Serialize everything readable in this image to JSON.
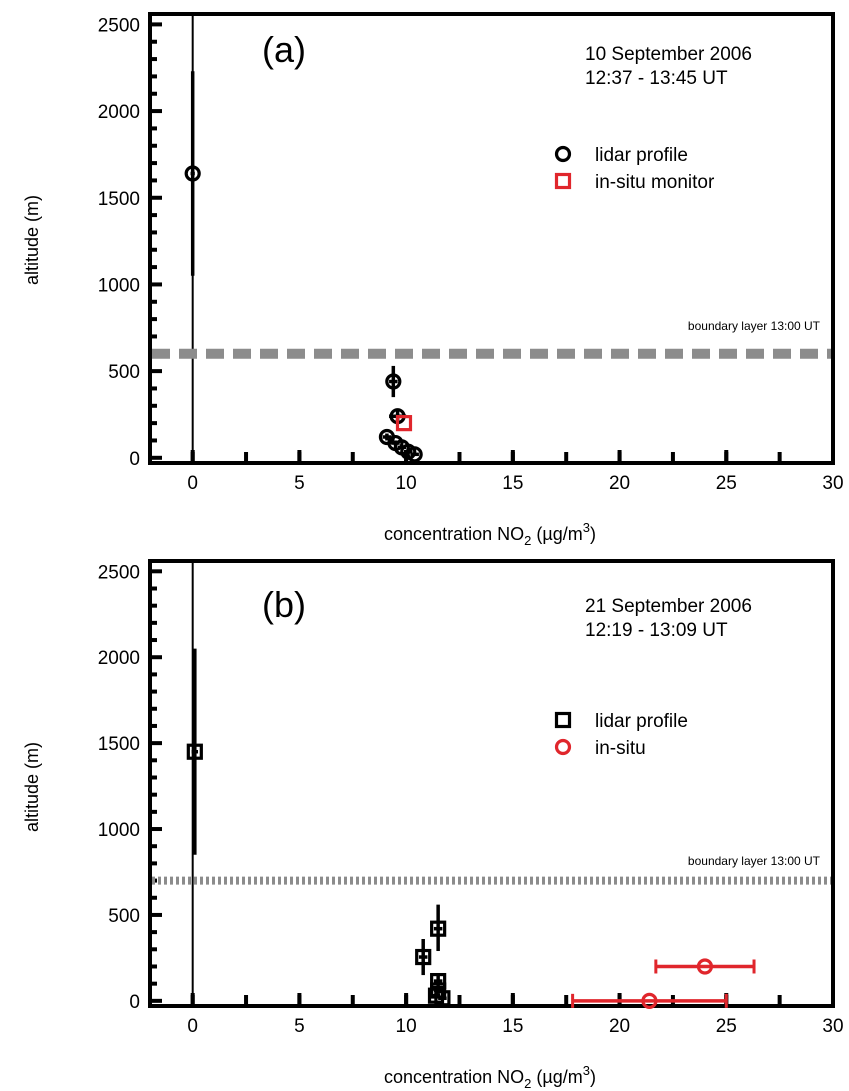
{
  "chart_data": [
    {
      "type": "scatter",
      "panel_label": "(a)",
      "date": "10 September 2006",
      "time": "12:37 - 13:45 UT",
      "xlabel": "concentration NO",
      "xlabel_sub": "2",
      "xlabel_unit_pre": " (µg/m",
      "xlabel_unit_sup": "3",
      "xlabel_unit_post": ")",
      "ylabel": "altitude (m)",
      "xlim": [
        -2,
        30
      ],
      "ylim": [
        -30,
        2560
      ],
      "xticks": [
        "0",
        "5",
        "10",
        "15",
        "20",
        "25",
        "30"
      ],
      "yticks": [
        "0",
        "500",
        "1000",
        "1500",
        "2000",
        "2500"
      ],
      "boundary_layer": {
        "label": "boundary layer 13:00 UT",
        "altitude": 600,
        "style": "dashed"
      },
      "series": [
        {
          "name": "lidar profile",
          "marker": "circle",
          "color": "#000000",
          "points": [
            {
              "x": 0.0,
              "y": 1640,
              "ylo": 1050,
              "yhi": 2230,
              "xlo": -0.1,
              "xhi": 0.1
            },
            {
              "x": 9.4,
              "y": 440,
              "ylo": 350,
              "yhi": 530,
              "xlo": 9.2,
              "xhi": 9.6
            },
            {
              "x": 9.6,
              "y": 240,
              "ylo": 205,
              "yhi": 275,
              "xlo": 9.2,
              "xhi": 10.0
            },
            {
              "x": 9.1,
              "y": 120,
              "ylo": 100,
              "yhi": 140,
              "xlo": 8.9,
              "xhi": 9.3
            },
            {
              "x": 9.5,
              "y": 85,
              "ylo": 70,
              "yhi": 100,
              "xlo": 9.3,
              "xhi": 9.7
            },
            {
              "x": 9.8,
              "y": 60,
              "ylo": 48,
              "yhi": 72,
              "xlo": 9.6,
              "xhi": 10.0
            },
            {
              "x": 10.1,
              "y": 35,
              "ylo": 25,
              "yhi": 45,
              "xlo": 9.9,
              "xhi": 10.3
            },
            {
              "x": 10.4,
              "y": 20,
              "ylo": 12,
              "yhi": 28,
              "xlo": 10.2,
              "xhi": 10.6
            }
          ]
        },
        {
          "name": "in-situ monitor",
          "marker": "square",
          "color": "#e0262c",
          "points": [
            {
              "x": 9.9,
              "y": 200
            }
          ]
        }
      ]
    },
    {
      "type": "scatter",
      "panel_label": "(b)",
      "date": "21 September 2006",
      "time": "12:19 - 13:09 UT",
      "xlabel": "concentration NO",
      "xlabel_sub": "2",
      "xlabel_unit_pre": " (µg/m",
      "xlabel_unit_sup": "3",
      "xlabel_unit_post": ")",
      "ylabel": "altitude (m)",
      "xlim": [
        -2,
        30
      ],
      "ylim": [
        -30,
        2560
      ],
      "xticks": [
        "0",
        "5",
        "10",
        "15",
        "20",
        "25",
        "30"
      ],
      "yticks": [
        "0",
        "500",
        "1000",
        "1500",
        "2000",
        "2500"
      ],
      "boundary_layer": {
        "label": "boundary layer 13:00 UT",
        "altitude": 700,
        "style": "dotted"
      },
      "series": [
        {
          "name": "lidar profile",
          "marker": "square",
          "color": "#000000",
          "points": [
            {
              "x": 0.1,
              "y": 1450,
              "ylo": 850,
              "yhi": 2050,
              "xlo": -0.05,
              "xhi": 0.25
            },
            {
              "x": 11.5,
              "y": 420,
              "ylo": 290,
              "yhi": 560,
              "xlo": 11.3,
              "xhi": 11.7
            },
            {
              "x": 10.8,
              "y": 255,
              "ylo": 150,
              "yhi": 360,
              "xlo": 10.6,
              "xhi": 11.0
            },
            {
              "x": 11.5,
              "y": 115,
              "ylo": 80,
              "yhi": 150,
              "xlo": 11.3,
              "xhi": 11.7
            },
            {
              "x": 11.5,
              "y": 60,
              "ylo": 40,
              "yhi": 80,
              "xlo": 11.3,
              "xhi": 11.7
            },
            {
              "x": 11.4,
              "y": 30,
              "ylo": 15,
              "yhi": 45,
              "xlo": 11.2,
              "xhi": 11.6
            },
            {
              "x": 11.7,
              "y": 15,
              "ylo": 5,
              "yhi": 25,
              "xlo": 11.5,
              "xhi": 11.9
            }
          ]
        },
        {
          "name": "in-situ",
          "marker": "circle",
          "color": "#e0262c",
          "points": [
            {
              "x": 24.0,
              "y": 200,
              "xlo": 21.7,
              "xhi": 26.3
            },
            {
              "x": 21.4,
              "y": 0,
              "xlo": 17.8,
              "xhi": 25.0
            }
          ]
        }
      ]
    }
  ]
}
